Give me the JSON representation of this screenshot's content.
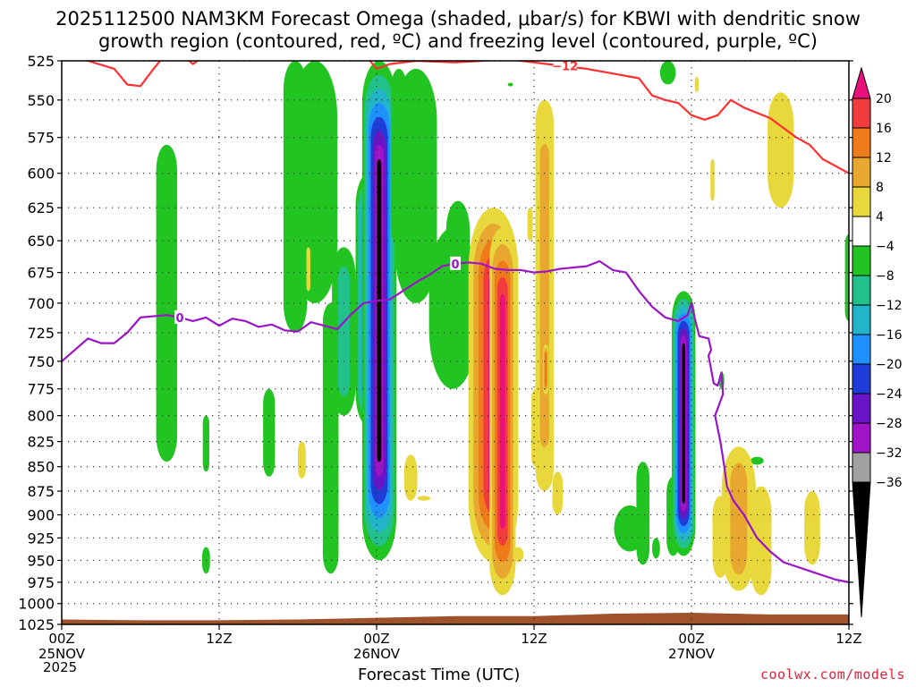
{
  "title": {
    "line1": "2025112500 NAM3KM Forecast Omega (shaded, μbar/s) for KBWI with dendritic snow",
    "line2": "growth region (contoured, red, ºC) and freezing level (contoured, purple, ºC)"
  },
  "xlabel": "Forecast Time (UTC)",
  "credit": "coolwx.com/models",
  "year_label": "2025",
  "chart_data": {
    "type": "heatmap",
    "x_unit": "forecast hours from 2025-11-25 00Z",
    "x_range": [
      0,
      60
    ],
    "y_unit": "pressure (mb)",
    "y_range": [
      1025,
      525
    ],
    "y_scale": "log-pressure",
    "grid": true,
    "y_ticks": [
      525,
      550,
      575,
      600,
      625,
      650,
      675,
      700,
      725,
      750,
      775,
      800,
      825,
      850,
      875,
      900,
      925,
      950,
      975,
      1000,
      1025
    ],
    "x_ticks": [
      {
        "x": 0,
        "label": "00Z",
        "date": "25NOV"
      },
      {
        "x": 12,
        "label": "12Z",
        "date": ""
      },
      {
        "x": 24,
        "label": "00Z",
        "date": "26NOV"
      },
      {
        "x": 36,
        "label": "12Z",
        "date": ""
      },
      {
        "x": 48,
        "label": "00Z",
        "date": "27NOV"
      },
      {
        "x": 60,
        "label": "12Z",
        "date": ""
      }
    ],
    "colorbar": {
      "labels": [
        "20",
        "16",
        "12",
        "8",
        "4",
        "−4",
        "−8",
        "−12",
        "−16",
        "−20",
        "−24",
        "−28",
        "−32",
        "−36"
      ],
      "bins": [
        {
          "min": 16,
          "max": 20,
          "color": "#f03c3c"
        },
        {
          "min": 12,
          "max": 16,
          "color": "#ee7a1a"
        },
        {
          "min": 8,
          "max": 12,
          "color": "#e8a830"
        },
        {
          "min": 4,
          "max": 8,
          "color": "#e8d83c"
        },
        {
          "min": -4,
          "max": 4,
          "color": "#ffffff"
        },
        {
          "min": -8,
          "max": -4,
          "color": "#22c422"
        },
        {
          "min": -12,
          "max": -8,
          "color": "#22c08a"
        },
        {
          "min": -16,
          "max": -12,
          "color": "#22b4c8"
        },
        {
          "min": -20,
          "max": -16,
          "color": "#1e90ff"
        },
        {
          "min": -24,
          "max": -20,
          "color": "#1f3cd6"
        },
        {
          "min": -28,
          "max": -24,
          "color": "#6a14c8"
        },
        {
          "min": -32,
          "max": -28,
          "color": "#a014c8"
        },
        {
          "min": -36,
          "max": -32,
          "color": "#a0a0a0"
        }
      ],
      "over_color": "#e8107a",
      "under_color": "#000000"
    },
    "omega_features": [
      {
        "t": 8.0,
        "p_top": 580,
        "p_bot": 845,
        "halfwidth_h": 0.8,
        "levels": [
          -6
        ]
      },
      {
        "t": 11.0,
        "p_top": 800,
        "p_bot": 855,
        "halfwidth_h": 0.25,
        "levels": [
          -6
        ]
      },
      {
        "t": 11.0,
        "p_top": 935,
        "p_bot": 965,
        "halfwidth_h": 0.3,
        "levels": [
          -6
        ]
      },
      {
        "t": 15.8,
        "p_top": 775,
        "p_bot": 860,
        "halfwidth_h": 0.45,
        "levels": [
          -6
        ]
      },
      {
        "t": 17.8,
        "p_top": 525,
        "p_bot": 725,
        "halfwidth_h": 0.9,
        "levels": [
          -6
        ]
      },
      {
        "t": 19.3,
        "p_top": 525,
        "p_bot": 700,
        "halfwidth_h": 1.7,
        "levels": [
          -6
        ]
      },
      {
        "t": 20.5,
        "p_top": 700,
        "p_bot": 965,
        "halfwidth_h": 0.6,
        "levels": [
          -6
        ]
      },
      {
        "t": 21.5,
        "p_top": 655,
        "p_bot": 800,
        "halfwidth_h": 0.9,
        "levels": [
          -6,
          -10
        ]
      },
      {
        "t": 23.4,
        "p_top": 600,
        "p_bot": 810,
        "halfwidth_h": 1.0,
        "levels": [
          -6,
          -10,
          -14,
          -18,
          -22,
          -26
        ]
      },
      {
        "t": 24.2,
        "p_top": 525,
        "p_bot": 950,
        "halfwidth_h": 1.3,
        "levels": [
          -6,
          -10,
          -14,
          -18,
          -22,
          -26,
          -30,
          -40
        ]
      },
      {
        "t": 25.7,
        "p_top": 530,
        "p_bot": 655,
        "halfwidth_h": 0.6,
        "levels": [
          -6
        ]
      },
      {
        "t": 27.0,
        "p_top": 530,
        "p_bot": 700,
        "halfwidth_h": 1.6,
        "levels": [
          -6
        ]
      },
      {
        "t": 29.8,
        "p_top": 640,
        "p_bot": 775,
        "halfwidth_h": 1.8,
        "levels": [
          -6
        ]
      },
      {
        "t": 30.2,
        "p_top": 620,
        "p_bot": 720,
        "halfwidth_h": 0.9,
        "levels": [
          -6
        ]
      },
      {
        "t": 34.2,
        "p_top": 540,
        "p_bot": 540,
        "halfwidth_h": 0.2,
        "levels": [
          -6
        ]
      },
      {
        "t": 36.6,
        "p_top": 650,
        "p_bot": 715,
        "halfwidth_h": 0.3,
        "levels": [
          -6
        ]
      },
      {
        "t": 43.3,
        "p_top": 890,
        "p_bot": 940,
        "halfwidth_h": 1.2,
        "levels": [
          -6
        ]
      },
      {
        "t": 44.3,
        "p_top": 845,
        "p_bot": 955,
        "halfwidth_h": 0.5,
        "levels": [
          -6
        ]
      },
      {
        "t": 45.3,
        "p_top": 925,
        "p_bot": 948,
        "halfwidth_h": 0.3,
        "levels": [
          -6
        ]
      },
      {
        "t": 46.2,
        "p_top": 525,
        "p_bot": 540,
        "halfwidth_h": 0.6,
        "levels": [
          -6
        ]
      },
      {
        "t": 46.6,
        "p_top": 860,
        "p_bot": 945,
        "halfwidth_h": 0.5,
        "levels": [
          -6
        ]
      },
      {
        "t": 47.4,
        "p_top": 690,
        "p_bot": 945,
        "halfwidth_h": 0.9,
        "levels": [
          -6,
          -10,
          -14,
          -18,
          -22,
          -26,
          -30,
          -40
        ]
      },
      {
        "t": 50.3,
        "p_top": 760,
        "p_bot": 775,
        "halfwidth_h": 0.2,
        "levels": [
          -6
        ]
      },
      {
        "t": 53.0,
        "p_top": 840,
        "p_bot": 848,
        "halfwidth_h": 0.5,
        "levels": [
          -6
        ]
      },
      {
        "t": 60.0,
        "p_top": 645,
        "p_bot": 715,
        "halfwidth_h": 0.3,
        "levels": [
          -6
        ]
      },
      {
        "t": 18.8,
        "p_top": 655,
        "p_bot": 690,
        "halfwidth_h": 0.15,
        "levels": [
          5
        ]
      },
      {
        "t": 18.3,
        "p_top": 825,
        "p_bot": 862,
        "halfwidth_h": 0.3,
        "levels": [
          5
        ]
      },
      {
        "t": 26.6,
        "p_top": 838,
        "p_bot": 885,
        "halfwidth_h": 0.5,
        "levels": [
          5
        ]
      },
      {
        "t": 27.6,
        "p_top": 880,
        "p_bot": 885,
        "halfwidth_h": 0.5,
        "levels": [
          5
        ]
      },
      {
        "t": 32.9,
        "p_top": 625,
        "p_bot": 952,
        "halfwidth_h": 1.9,
        "levels": [
          5,
          9,
          13,
          17,
          22
        ]
      },
      {
        "t": 33.6,
        "p_top": 640,
        "p_bot": 990,
        "halfwidth_h": 1.0,
        "levels": [
          5,
          9,
          13,
          17,
          22
        ]
      },
      {
        "t": 34.8,
        "p_top": 935,
        "p_bot": 952,
        "halfwidth_h": 0.4,
        "levels": [
          5
        ]
      },
      {
        "t": 35.7,
        "p_top": 625,
        "p_bot": 650,
        "halfwidth_h": 0.2,
        "levels": [
          5
        ]
      },
      {
        "t": 36.1,
        "p_top": 775,
        "p_bot": 850,
        "halfwidth_h": 0.3,
        "levels": [
          5
        ]
      },
      {
        "t": 36.8,
        "p_top": 550,
        "p_bot": 875,
        "halfwidth_h": 0.7,
        "levels": [
          5,
          9
        ]
      },
      {
        "t": 36.9,
        "p_top": 735,
        "p_bot": 780,
        "halfwidth_h": 0.2,
        "levels": [
          5,
          9,
          13
        ]
      },
      {
        "t": 37.8,
        "p_top": 855,
        "p_bot": 900,
        "halfwidth_h": 0.4,
        "levels": [
          5
        ]
      },
      {
        "t": 48.4,
        "p_top": 535,
        "p_bot": 545,
        "halfwidth_h": 0.15,
        "levels": [
          5
        ]
      },
      {
        "t": 49.6,
        "p_top": 590,
        "p_bot": 620,
        "halfwidth_h": 0.15,
        "levels": [
          5
        ]
      },
      {
        "t": 50.2,
        "p_top": 880,
        "p_bot": 970,
        "halfwidth_h": 0.6,
        "levels": [
          5
        ]
      },
      {
        "t": 51.6,
        "p_top": 830,
        "p_bot": 985,
        "halfwidth_h": 1.3,
        "levels": [
          5,
          9
        ]
      },
      {
        "t": 53.3,
        "p_top": 870,
        "p_bot": 990,
        "halfwidth_h": 0.8,
        "levels": [
          5
        ]
      },
      {
        "t": 54.8,
        "p_top": 545,
        "p_bot": 625,
        "halfwidth_h": 1.0,
        "levels": [
          5
        ]
      },
      {
        "t": 57.2,
        "p_top": 875,
        "p_bot": 955,
        "halfwidth_h": 0.6,
        "levels": [
          5
        ]
      }
    ],
    "minus12_contour": {
      "label": "−12",
      "label_at": [
        38.3,
        528
      ],
      "segments": [
        [
          [
            0,
            520
          ],
          [
            2,
            525
          ],
          [
            4,
            530
          ],
          [
            5,
            540
          ],
          [
            6,
            541
          ],
          [
            7,
            530
          ],
          [
            8,
            520
          ],
          [
            9,
            520
          ],
          [
            10,
            527
          ],
          [
            11,
            521
          ],
          [
            12,
            521
          ],
          [
            13,
            520
          ],
          [
            14,
            520
          ],
          [
            15,
            518
          ],
          [
            16,
            516
          ],
          [
            18,
            518
          ],
          [
            19,
            517
          ],
          [
            20,
            518
          ]
        ],
        [
          [
            22,
            500
          ],
          [
            23,
            520
          ],
          [
            24,
            530
          ],
          [
            25,
            527
          ],
          [
            27,
            525
          ],
          [
            30,
            526
          ],
          [
            32,
            525
          ],
          [
            34,
            524
          ],
          [
            36,
            526
          ],
          [
            37,
            527
          ],
          [
            38,
            528
          ],
          [
            40,
            530
          ],
          [
            42,
            533
          ],
          [
            44,
            536
          ],
          [
            45,
            547
          ],
          [
            46,
            550
          ],
          [
            47,
            552
          ],
          [
            48,
            560
          ],
          [
            49,
            563
          ],
          [
            50,
            560
          ],
          [
            51,
            550
          ],
          [
            52,
            555
          ],
          [
            54,
            562
          ],
          [
            56,
            575
          ],
          [
            57,
            580
          ],
          [
            58,
            590
          ],
          [
            60,
            600
          ]
        ],
        [
          [
            58,
            510
          ],
          [
            60,
            525
          ]
        ]
      ]
    },
    "zero_contour": {
      "label": "0",
      "label_at": [
        [
          9,
          712
        ],
        [
          30,
          668
        ]
      ],
      "segments": [
        [
          [
            0,
            750
          ],
          [
            1,
            740
          ],
          [
            2,
            730
          ],
          [
            3,
            734
          ],
          [
            4,
            734
          ],
          [
            5,
            725
          ],
          [
            6,
            712
          ],
          [
            8,
            710
          ],
          [
            9,
            712
          ],
          [
            10,
            715
          ],
          [
            11,
            712
          ],
          [
            12,
            719
          ],
          [
            13,
            713
          ],
          [
            14,
            715
          ],
          [
            15,
            720
          ],
          [
            16,
            718
          ],
          [
            17,
            723
          ],
          [
            18,
            724
          ],
          [
            19,
            716
          ],
          [
            20,
            719
          ],
          [
            21,
            722
          ],
          [
            22,
            710
          ],
          [
            23,
            700
          ],
          [
            24,
            698
          ],
          [
            25,
            697
          ],
          [
            26,
            690
          ],
          [
            27,
            683
          ],
          [
            28,
            677
          ],
          [
            29,
            670
          ],
          [
            30,
            668
          ],
          [
            31,
            667
          ],
          [
            32,
            668
          ],
          [
            33,
            672
          ],
          [
            34,
            673
          ],
          [
            35,
            673
          ],
          [
            36,
            675
          ],
          [
            37,
            674
          ],
          [
            38,
            672
          ],
          [
            40,
            670
          ],
          [
            41,
            666
          ],
          [
            42,
            673
          ],
          [
            43,
            675
          ],
          [
            44,
            690
          ],
          [
            45,
            703
          ],
          [
            46,
            712
          ],
          [
            47,
            715
          ],
          [
            47.7,
            710
          ],
          [
            48.0,
            700
          ],
          [
            48.3,
            715
          ],
          [
            48.6,
            728
          ],
          [
            49.3,
            730
          ],
          [
            49.5,
            740
          ],
          [
            49.3,
            745
          ],
          [
            49.7,
            770
          ],
          [
            50,
            772
          ],
          [
            50.3,
            760
          ],
          [
            50.4,
            780
          ],
          [
            49.8,
            800
          ],
          [
            50.2,
            825
          ],
          [
            50.5,
            850
          ],
          [
            50.7,
            870
          ],
          [
            51.2,
            885
          ],
          [
            52,
            900
          ],
          [
            53,
            925
          ],
          [
            54,
            940
          ],
          [
            55,
            952
          ],
          [
            57,
            962
          ],
          [
            59,
            972
          ],
          [
            60,
            975
          ]
        ]
      ]
    },
    "terrain_top": [
      [
        0,
        1019
      ],
      [
        6,
        1020
      ],
      [
        12,
        1020
      ],
      [
        18,
        1019
      ],
      [
        24,
        1017
      ],
      [
        30,
        1015
      ],
      [
        36,
        1015
      ],
      [
        42,
        1012
      ],
      [
        48,
        1011
      ],
      [
        54,
        1013
      ],
      [
        60,
        1013
      ]
    ]
  }
}
